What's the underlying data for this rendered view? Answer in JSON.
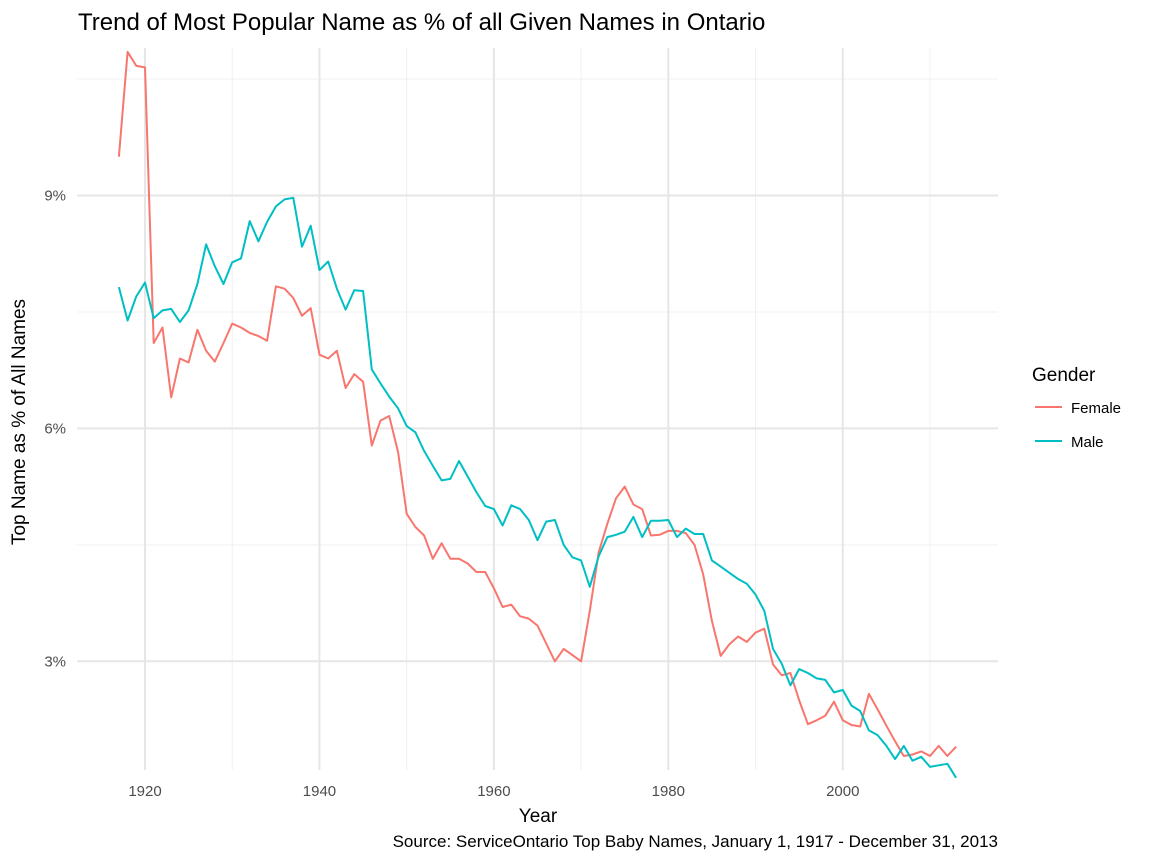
{
  "chart_data": {
    "type": "line",
    "title": "Trend of Most Popular Name as % of all Given Names in Ontario",
    "xlabel": "Year",
    "ylabel": "Top Name as % of All Names",
    "caption": "Source: ServiceOntario Top Baby Names, January 1, 1917 - December 31, 2013",
    "legend_title": "Gender",
    "legend_position": "right",
    "grid": true,
    "xlim": [
      1912.2,
      2017.8
    ],
    "ylim": [
      0.016,
      0.109
    ],
    "x_ticks": [
      1920,
      1940,
      1960,
      1980,
      2000
    ],
    "x_tick_labels": [
      "1920",
      "1940",
      "1960",
      "1980",
      "2000"
    ],
    "y_ticks": [
      0.03,
      0.06,
      0.09
    ],
    "y_tick_labels": [
      "3%",
      "6%",
      "9%"
    ],
    "x": [
      1917,
      1918,
      1919,
      1920,
      1921,
      1922,
      1923,
      1924,
      1925,
      1926,
      1927,
      1928,
      1929,
      1930,
      1931,
      1932,
      1933,
      1934,
      1935,
      1936,
      1937,
      1938,
      1939,
      1940,
      1941,
      1942,
      1943,
      1944,
      1945,
      1946,
      1947,
      1948,
      1949,
      1950,
      1951,
      1952,
      1953,
      1954,
      1955,
      1956,
      1957,
      1958,
      1959,
      1960,
      1961,
      1962,
      1963,
      1964,
      1965,
      1966,
      1967,
      1968,
      1969,
      1970,
      1971,
      1972,
      1973,
      1974,
      1975,
      1976,
      1977,
      1978,
      1979,
      1980,
      1981,
      1982,
      1983,
      1984,
      1985,
      1986,
      1987,
      1988,
      1989,
      1990,
      1991,
      1992,
      1993,
      1994,
      1995,
      1996,
      1997,
      1998,
      1999,
      2000,
      2001,
      2002,
      2003,
      2004,
      2005,
      2006,
      2007,
      2008,
      2009,
      2010,
      2011,
      2012,
      2013
    ],
    "series": [
      {
        "name": "Female",
        "color": "#F8766D",
        "values": [
          0.095,
          0.1085,
          0.1067,
          0.1065,
          0.071,
          0.073,
          0.064,
          0.069,
          0.0685,
          0.0727,
          0.07,
          0.0686,
          0.071,
          0.0735,
          0.073,
          0.0723,
          0.0719,
          0.0713,
          0.0783,
          0.078,
          0.0768,
          0.0745,
          0.0755,
          0.0695,
          0.069,
          0.07,
          0.0652,
          0.067,
          0.066,
          0.0578,
          0.061,
          0.0616,
          0.057,
          0.049,
          0.0473,
          0.0462,
          0.0432,
          0.0452,
          0.0432,
          0.0432,
          0.0426,
          0.0415,
          0.0415,
          0.0394,
          0.037,
          0.0373,
          0.0358,
          0.0355,
          0.0346,
          0.0323,
          0.03,
          0.0316,
          0.0308,
          0.03,
          0.0365,
          0.044,
          0.0477,
          0.051,
          0.0525,
          0.0502,
          0.0496,
          0.0462,
          0.0463,
          0.0468,
          0.0468,
          0.0465,
          0.045,
          0.0412,
          0.0352,
          0.0307,
          0.0322,
          0.0332,
          0.0325,
          0.0337,
          0.0342,
          0.0296,
          0.0282,
          0.0285,
          0.025,
          0.0219,
          0.0224,
          0.023,
          0.0248,
          0.0224,
          0.0218,
          0.0216,
          0.0258,
          0.0238,
          0.0217,
          0.0197,
          0.0178,
          0.018,
          0.0184,
          0.0178,
          0.0191,
          0.0178,
          0.019
        ]
      },
      {
        "name": "Male",
        "color": "#00BFC4",
        "values": [
          0.0782,
          0.0739,
          0.077,
          0.0788,
          0.0742,
          0.0752,
          0.0754,
          0.0737,
          0.0752,
          0.0786,
          0.0837,
          0.0809,
          0.0786,
          0.0814,
          0.0819,
          0.0867,
          0.0841,
          0.0866,
          0.0886,
          0.0895,
          0.0897,
          0.0834,
          0.0861,
          0.0804,
          0.0815,
          0.078,
          0.0753,
          0.0778,
          0.0777,
          0.0676,
          0.0658,
          0.0641,
          0.0626,
          0.0603,
          0.0595,
          0.0571,
          0.0552,
          0.0533,
          0.0535,
          0.0558,
          0.0538,
          0.0518,
          0.05,
          0.0496,
          0.0475,
          0.0501,
          0.0496,
          0.0482,
          0.0456,
          0.048,
          0.0482,
          0.045,
          0.0434,
          0.043,
          0.0396,
          0.0435,
          0.046,
          0.0463,
          0.0467,
          0.0486,
          0.046,
          0.0481,
          0.0481,
          0.0482,
          0.046,
          0.0471,
          0.0464,
          0.0464,
          0.043,
          0.0422,
          0.0414,
          0.0406,
          0.04,
          0.0386,
          0.0365,
          0.0316,
          0.0297,
          0.0269,
          0.029,
          0.0285,
          0.0278,
          0.0276,
          0.026,
          0.0263,
          0.0243,
          0.0236,
          0.0211,
          0.0205,
          0.0191,
          0.0174,
          0.0191,
          0.0172,
          0.0177,
          0.0164,
          0.0166,
          0.0168,
          0.015
        ]
      }
    ]
  }
}
